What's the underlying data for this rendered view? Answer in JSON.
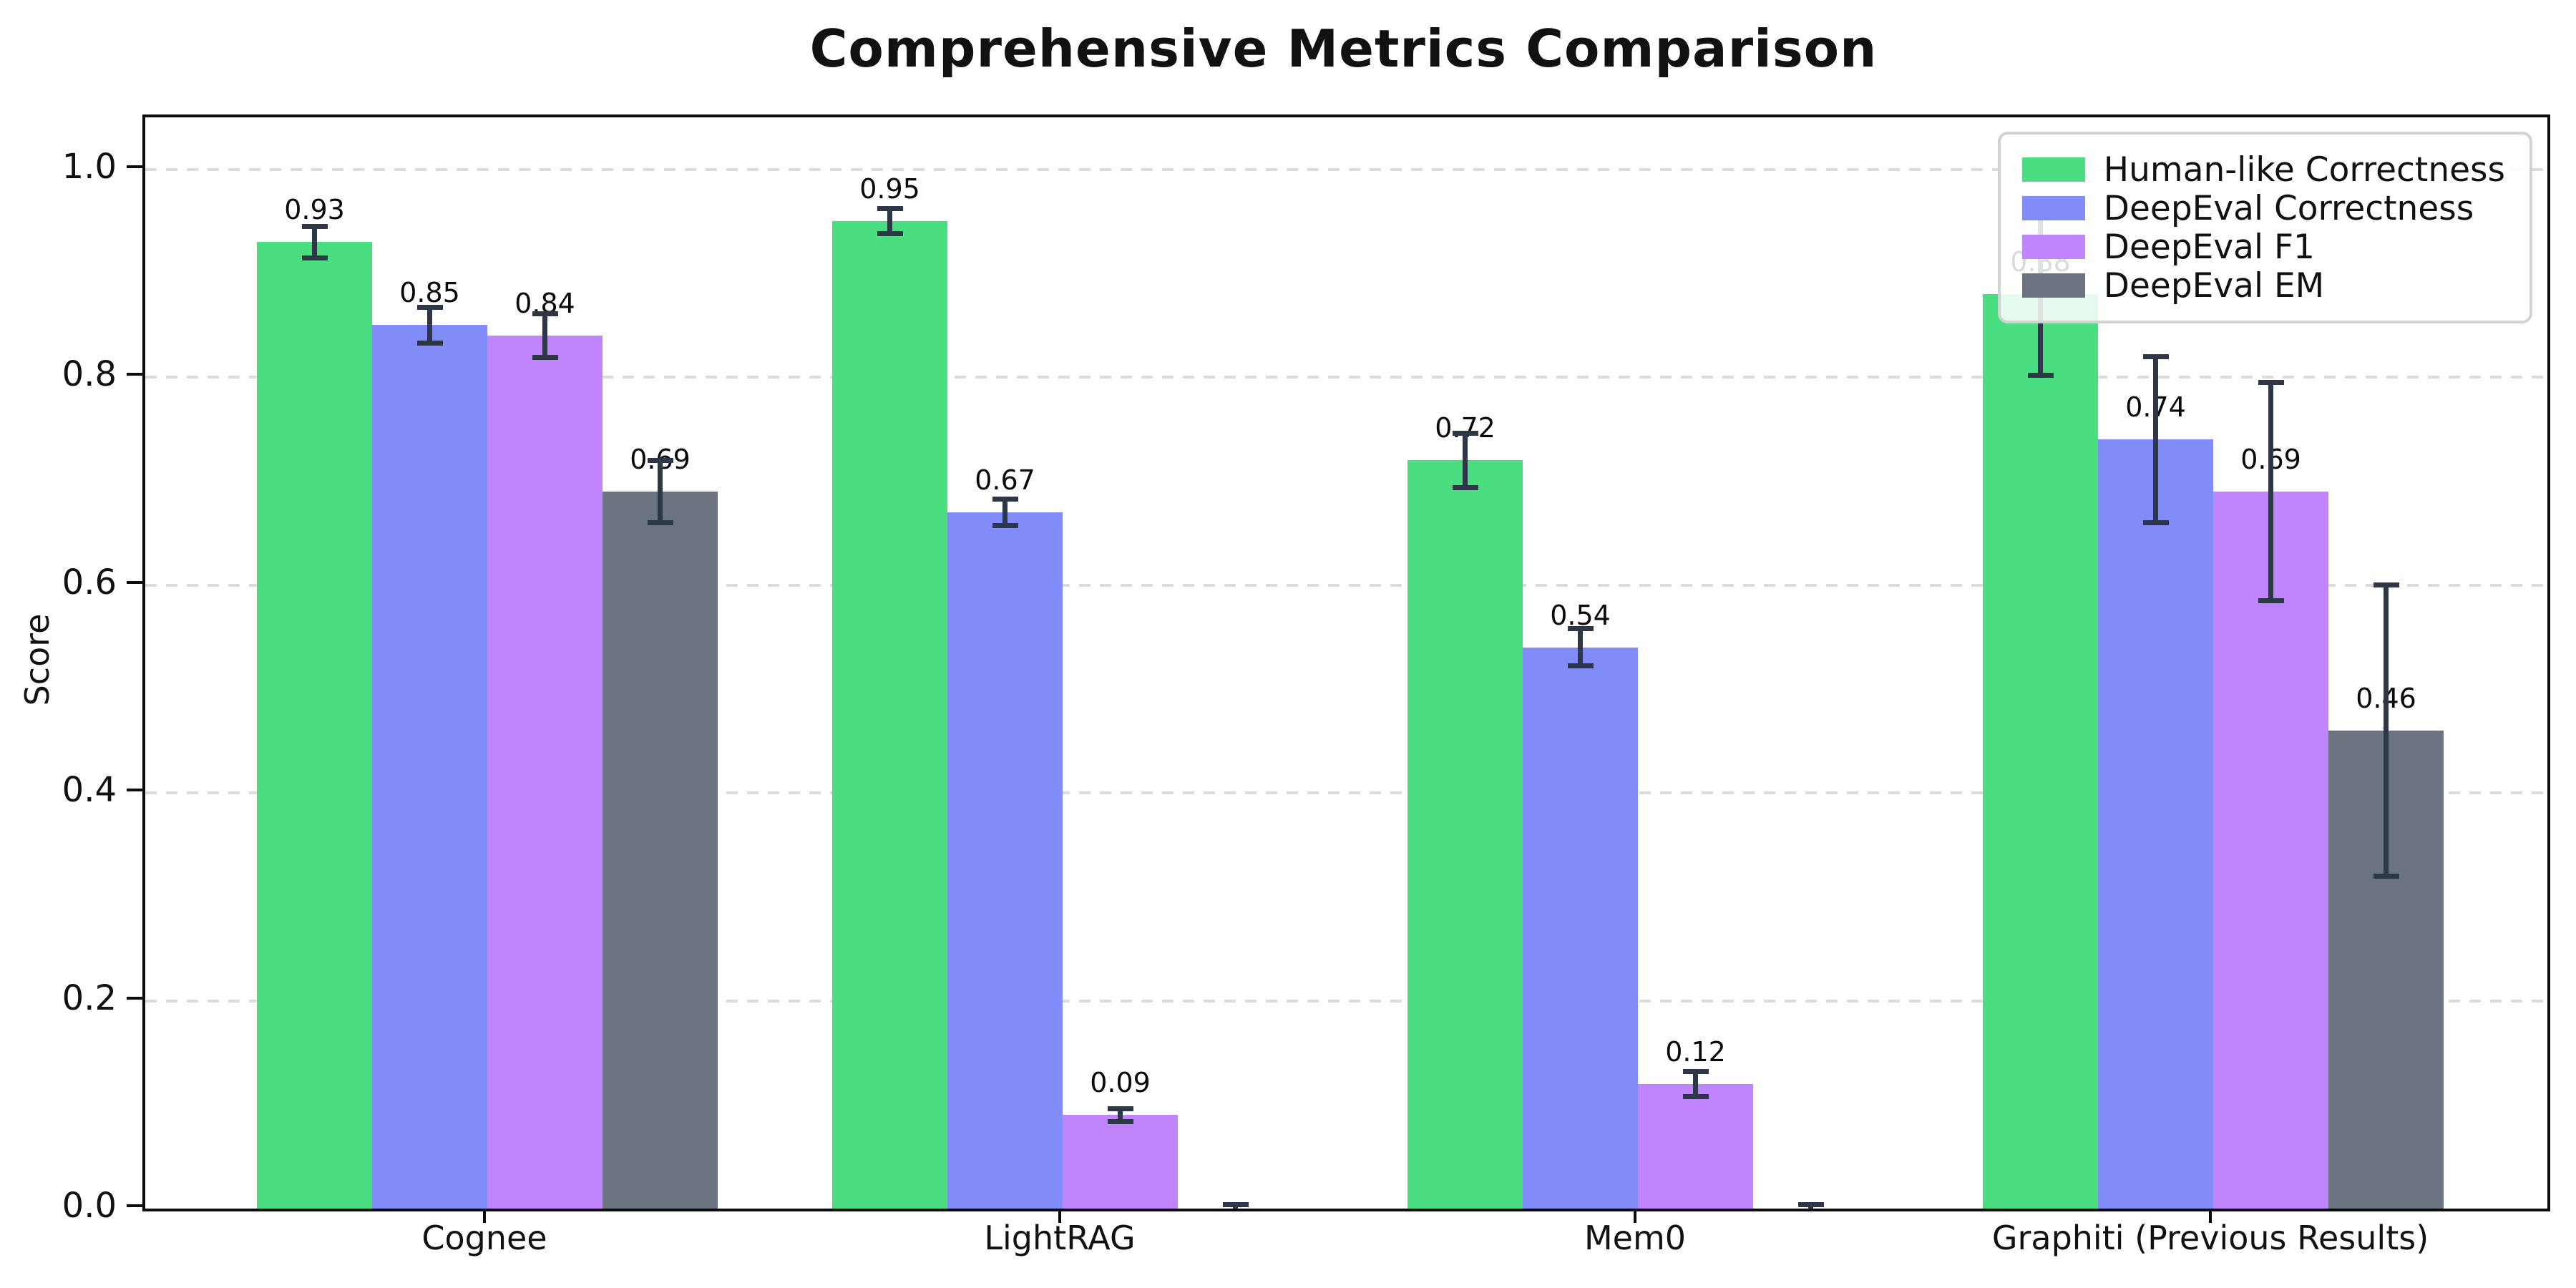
{
  "chart_data": {
    "type": "bar",
    "title": "Comprehensive Metrics Comparison",
    "ylabel": "Score",
    "xlabel": "",
    "categories": [
      "Cognee",
      "LightRAG",
      "Mem0",
      "Graphiti (Previous Results)"
    ],
    "series": [
      {
        "name": "Human-like Correctness",
        "color": "#4ade80",
        "values": [
          0.93,
          0.95,
          0.72,
          0.88
        ],
        "errors": [
          0.015,
          0.012,
          0.026,
          0.078
        ],
        "labels": [
          "0.93",
          "0.95",
          "0.72",
          "0.88"
        ]
      },
      {
        "name": "DeepEval Correctness",
        "color": "#818cf8",
        "values": [
          0.85,
          0.67,
          0.54,
          0.74
        ],
        "errors": [
          0.017,
          0.013,
          0.018,
          0.08
        ],
        "labels": [
          "0.85",
          "0.67",
          "0.54",
          "0.74"
        ]
      },
      {
        "name": "DeepEval F1",
        "color": "#c084fc",
        "values": [
          0.84,
          0.09,
          0.12,
          0.69
        ],
        "errors": [
          0.021,
          0.006,
          0.012,
          0.105
        ],
        "labels": [
          "0.84",
          "0.09",
          "0.12",
          "0.69"
        ]
      },
      {
        "name": "DeepEval EM",
        "color": "#6b7280",
        "values": [
          0.69,
          0.0,
          0.0,
          0.46
        ],
        "errors": [
          0.03,
          0.004,
          0.004,
          0.14
        ],
        "labels": [
          "0.69",
          null,
          null,
          "0.46"
        ]
      }
    ],
    "ytick_values": [
      0.0,
      0.2,
      0.4,
      0.6,
      0.8,
      1.0
    ],
    "ytick_labels": [
      "0.0",
      "0.2",
      "0.4",
      "0.6",
      "0.8",
      "1.0"
    ],
    "ylim": [
      0,
      1.05
    ],
    "grid": "horizontal-dashed",
    "grid_color": "#dcdcdc",
    "error_bar_color": "#2d3748",
    "legend_position": "upper right"
  }
}
